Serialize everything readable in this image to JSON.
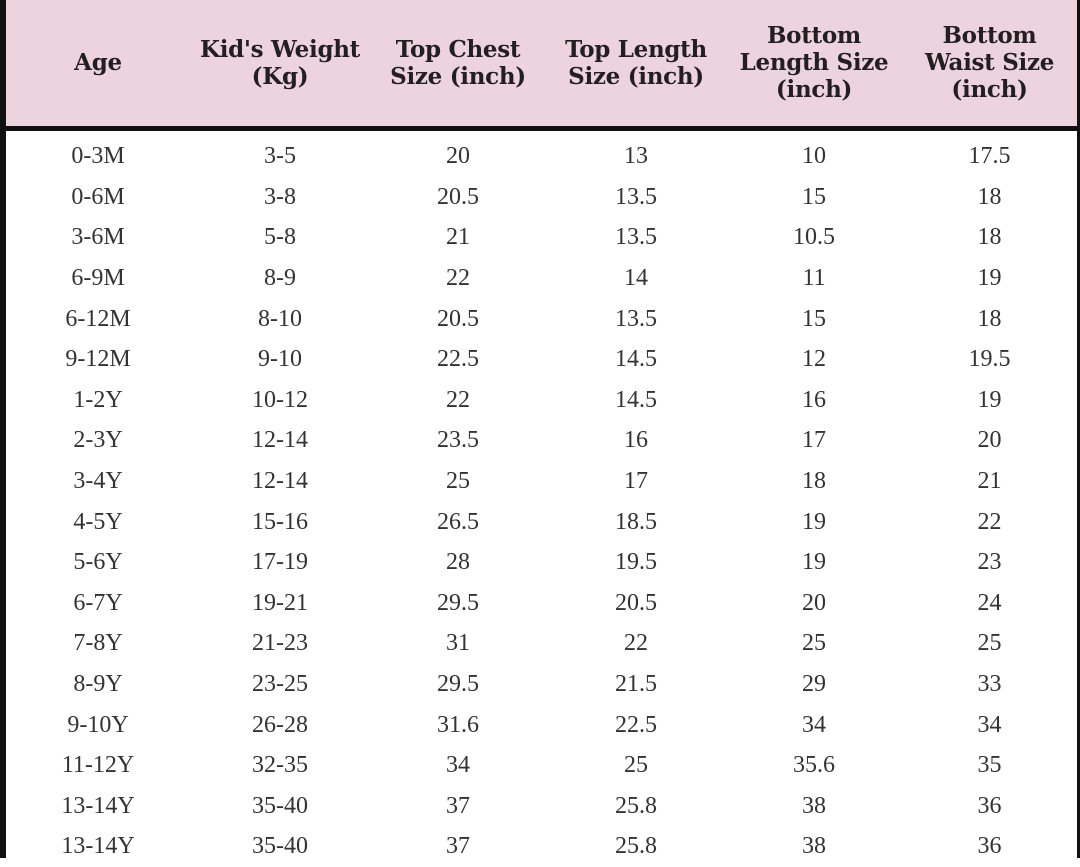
{
  "table": {
    "headers": [
      "Age",
      "Kid's Weight (Kg)",
      "Top Chest Size (inch)",
      "Top Length Size (inch)",
      "Bottom Length Size (inch)",
      "Bottom Waist Size (inch)"
    ],
    "rows": [
      [
        "0-3M",
        "3-5",
        "20",
        "13",
        "10",
        "17.5"
      ],
      [
        "0-6M",
        "3-8",
        "20.5",
        "13.5",
        "15",
        "18"
      ],
      [
        "3-6M",
        "5-8",
        "21",
        "13.5",
        "10.5",
        "18"
      ],
      [
        "6-9M",
        "8-9",
        "22",
        "14",
        "11",
        "19"
      ],
      [
        "6-12M",
        "8-10",
        "20.5",
        "13.5",
        "15",
        "18"
      ],
      [
        "9-12M",
        "9-10",
        "22.5",
        "14.5",
        "12",
        "19.5"
      ],
      [
        "1-2Y",
        "10-12",
        "22",
        "14.5",
        "16",
        "19"
      ],
      [
        "2-3Y",
        "12-14",
        "23.5",
        "16",
        "17",
        "20"
      ],
      [
        "3-4Y",
        "12-14",
        "25",
        "17",
        "18",
        "21"
      ],
      [
        "4-5Y",
        "15-16",
        "26.5",
        "18.5",
        "19",
        "22"
      ],
      [
        "5-6Y",
        "17-19",
        "28",
        "19.5",
        "19",
        "23"
      ],
      [
        "6-7Y",
        "19-21",
        "29.5",
        "20.5",
        "20",
        "24"
      ],
      [
        "7-8Y",
        "21-23",
        "31",
        "22",
        "25",
        "25"
      ],
      [
        "8-9Y",
        "23-25",
        "29.5",
        "21.5",
        "29",
        "33"
      ],
      [
        "9-10Y",
        "26-28",
        "31.6",
        "22.5",
        "34",
        "34"
      ],
      [
        "11-12Y",
        "32-35",
        "34",
        "25",
        "35.6",
        "35"
      ],
      [
        "13-14Y",
        "35-40",
        "37",
        "25.8",
        "38",
        "36"
      ],
      [
        "13-14Y",
        "35-40",
        "37",
        "25.8",
        "38",
        "36"
      ]
    ],
    "colors": {
      "header_bg": "#ecd3dd",
      "border": "#111111"
    }
  }
}
